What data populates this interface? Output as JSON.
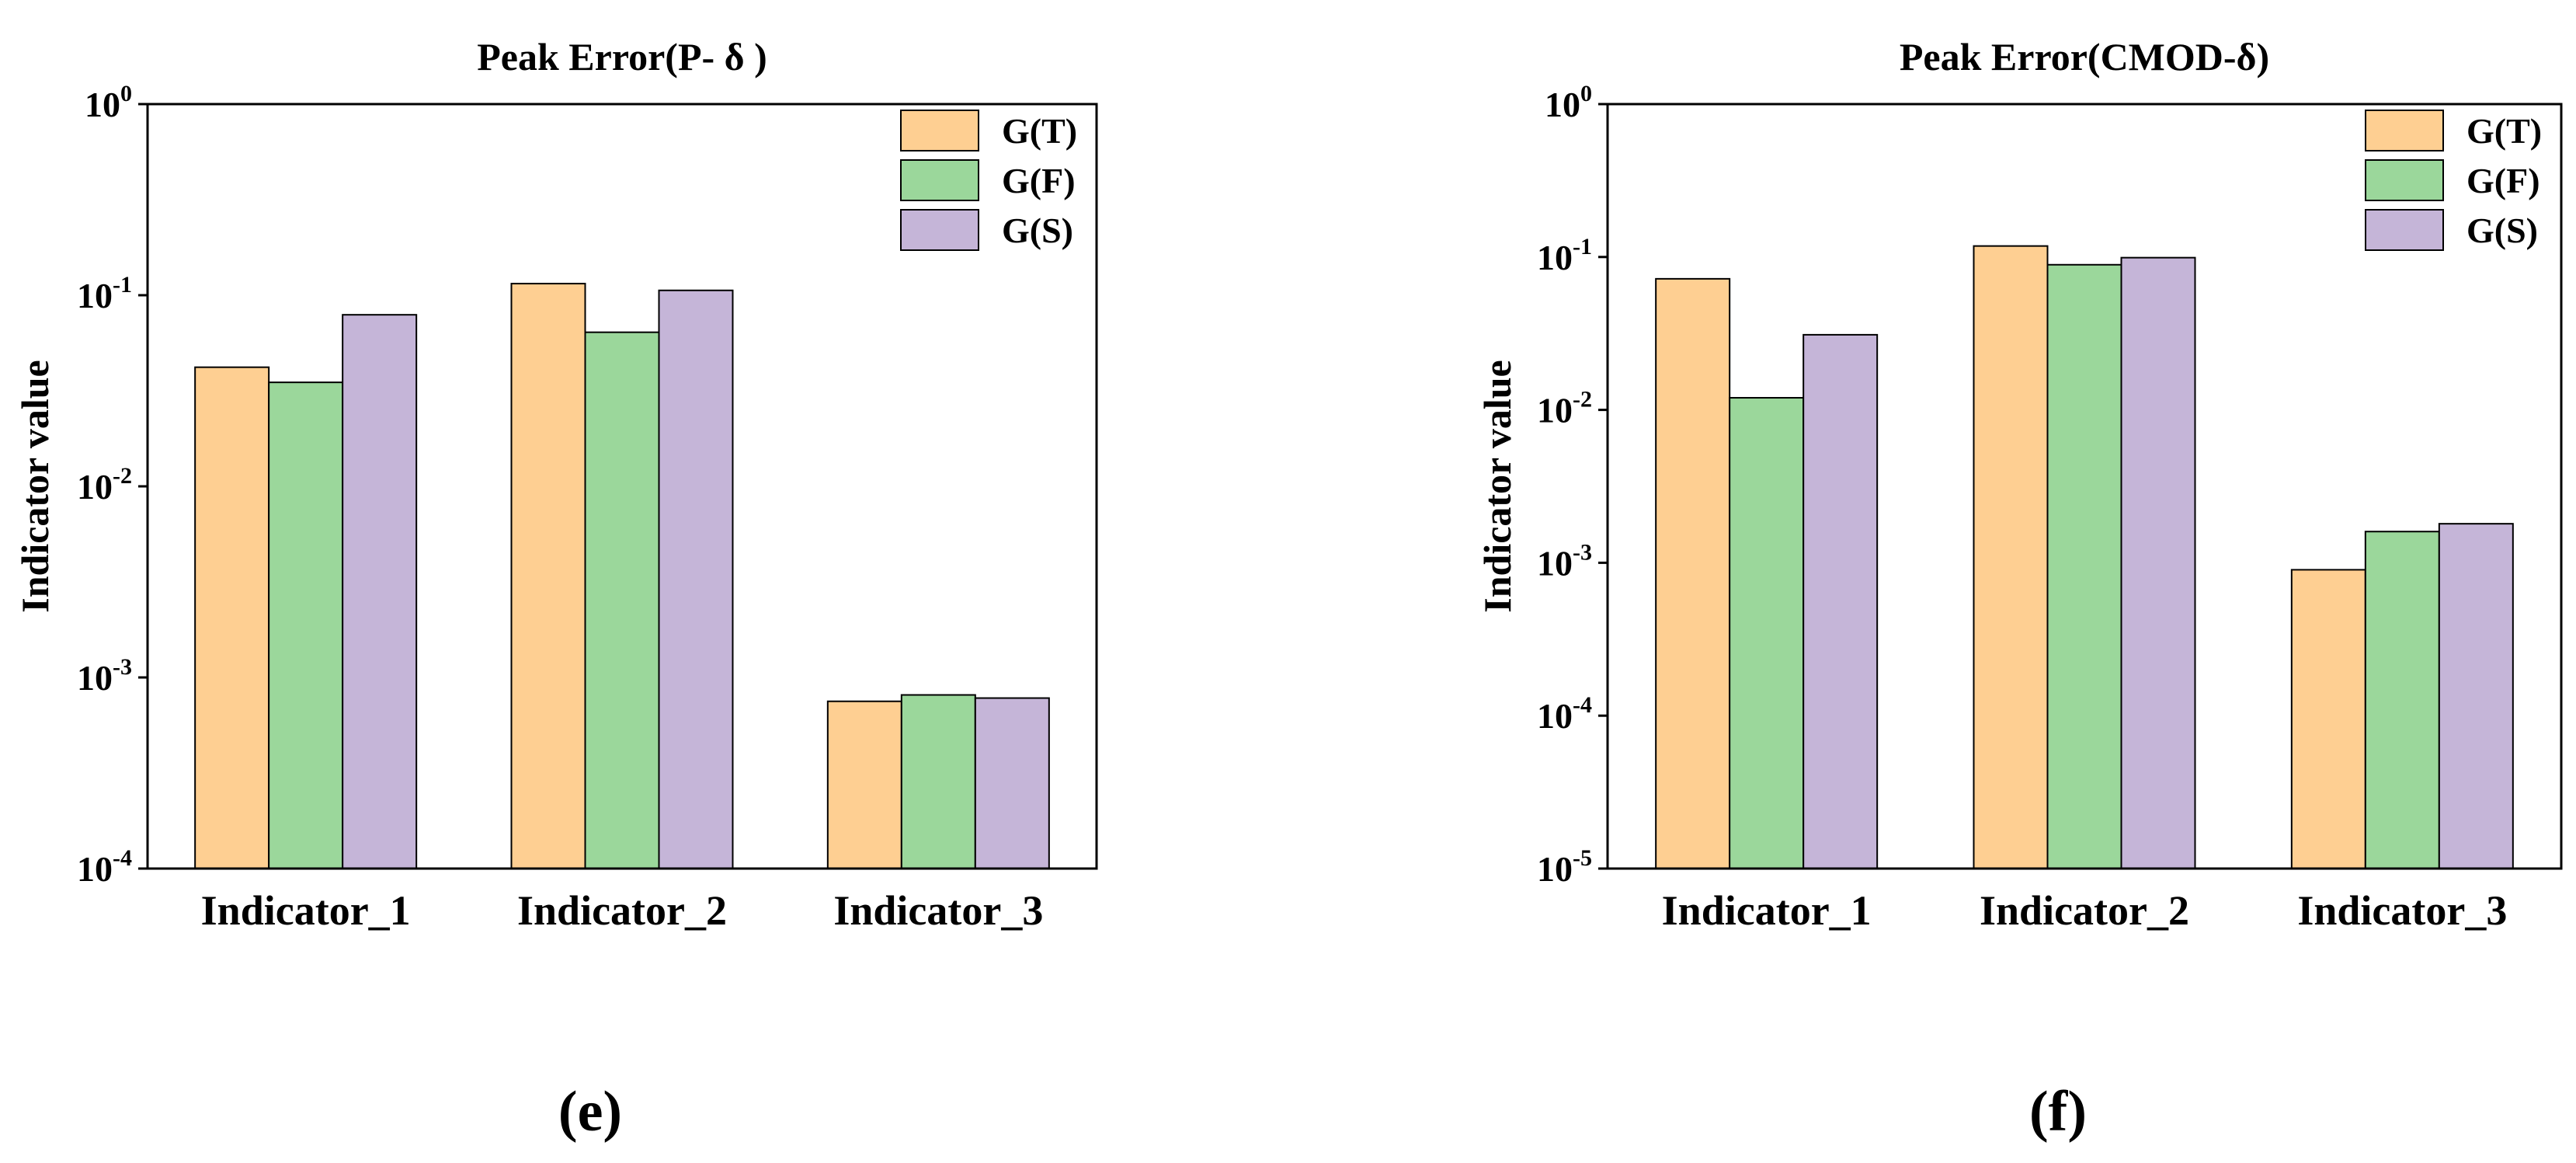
{
  "chart_data": [
    {
      "type": "bar",
      "title": "Peak Error(P- δ )",
      "panel_label": "(e)",
      "xlabel": "",
      "ylabel": "Indicator value",
      "yscale": "log",
      "ylim": [
        0.0001,
        1
      ],
      "yticks": [
        {
          "value": 1,
          "base": "10",
          "exp": "0"
        },
        {
          "value": 0.1,
          "base": "10",
          "exp": "-1"
        },
        {
          "value": 0.01,
          "base": "10",
          "exp": "-2"
        },
        {
          "value": 0.001,
          "base": "10",
          "exp": "-3"
        },
        {
          "value": 0.0001,
          "base": "10",
          "exp": "-4"
        }
      ],
      "categories": [
        "Indicator_1",
        "Indicator_2",
        "Indicator_3"
      ],
      "legend_position": "top-right",
      "series": [
        {
          "name": "G(T)",
          "color": "#FECF92",
          "values": [
            0.042,
            0.115,
            0.00075
          ]
        },
        {
          "name": "G(F)",
          "color": "#9BD79B",
          "values": [
            0.035,
            0.064,
            0.00081
          ]
        },
        {
          "name": "G(S)",
          "color": "#C5B5D8",
          "values": [
            0.079,
            0.106,
            0.00078
          ]
        }
      ]
    },
    {
      "type": "bar",
      "title": "Peak Error(CMOD-δ)",
      "panel_label": "(f)",
      "xlabel": "",
      "ylabel": "Indicator value",
      "yscale": "log",
      "ylim": [
        1e-05,
        1
      ],
      "yticks": [
        {
          "value": 1,
          "base": "10",
          "exp": "0"
        },
        {
          "value": 0.1,
          "base": "10",
          "exp": "-1"
        },
        {
          "value": 0.01,
          "base": "10",
          "exp": "-2"
        },
        {
          "value": 0.001,
          "base": "10",
          "exp": "-3"
        },
        {
          "value": 0.0001,
          "base": "10",
          "exp": "-4"
        },
        {
          "value": 1e-05,
          "base": "10",
          "exp": "-5"
        }
      ],
      "categories": [
        "Indicator_1",
        "Indicator_2",
        "Indicator_3"
      ],
      "legend_position": "top-right",
      "series": [
        {
          "name": "G(T)",
          "color": "#FECF92",
          "values": [
            0.072,
            0.118,
            0.0009
          ]
        },
        {
          "name": "G(F)",
          "color": "#9BD79B",
          "values": [
            0.012,
            0.089,
            0.0016
          ]
        },
        {
          "name": "G(S)",
          "color": "#C5B5D8",
          "values": [
            0.031,
            0.099,
            0.0018
          ]
        }
      ]
    }
  ]
}
